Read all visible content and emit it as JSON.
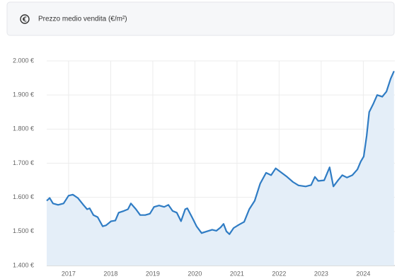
{
  "chart_data": {
    "type": "area",
    "title": "Prezzo medio vendita (€/m²)",
    "x": [
      2016.48,
      2016.55,
      2016.63,
      2016.75,
      2016.88,
      2017.0,
      2017.1,
      2017.22,
      2017.35,
      2017.44,
      2017.5,
      2017.59,
      2017.69,
      2017.81,
      2017.89,
      2018.01,
      2018.11,
      2018.19,
      2018.31,
      2018.41,
      2018.48,
      2018.6,
      2018.7,
      2018.82,
      2018.93,
      2019.03,
      2019.15,
      2019.27,
      2019.37,
      2019.47,
      2019.57,
      2019.67,
      2019.77,
      2019.82,
      2019.94,
      2020.04,
      2020.16,
      2020.28,
      2020.41,
      2020.51,
      2020.61,
      2020.68,
      2020.75,
      2020.82,
      2020.92,
      2021.05,
      2021.17,
      2021.29,
      2021.42,
      2021.55,
      2021.69,
      2021.81,
      2021.92,
      2022.06,
      2022.19,
      2022.33,
      2022.46,
      2022.63,
      2022.76,
      2022.85,
      2022.93,
      2023.07,
      2023.2,
      2023.29,
      2023.4,
      2023.5,
      2023.61,
      2023.74,
      2023.86,
      2023.94,
      2024.01,
      2024.08,
      2024.14,
      2024.24,
      2024.33,
      2024.45,
      2024.55,
      2024.65,
      2024.73
    ],
    "values": [
      1590,
      1598,
      1582,
      1578,
      1582,
      1605,
      1608,
      1598,
      1578,
      1565,
      1568,
      1548,
      1542,
      1515,
      1518,
      1530,
      1532,
      1555,
      1560,
      1565,
      1582,
      1565,
      1548,
      1548,
      1552,
      1572,
      1576,
      1572,
      1578,
      1560,
      1555,
      1530,
      1565,
      1568,
      1540,
      1515,
      1495,
      1500,
      1505,
      1502,
      1512,
      1522,
      1500,
      1492,
      1510,
      1520,
      1528,
      1565,
      1590,
      1640,
      1672,
      1665,
      1685,
      1672,
      1660,
      1645,
      1635,
      1632,
      1636,
      1660,
      1648,
      1650,
      1688,
      1632,
      1650,
      1665,
      1658,
      1665,
      1682,
      1705,
      1720,
      1780,
      1850,
      1875,
      1900,
      1895,
      1910,
      1948,
      1970
    ],
    "color": "#2f7cc4",
    "fill": "#e4eef8",
    "xlim": [
      2016.48,
      2024.75
    ],
    "xticks": [
      2017,
      2018,
      2019,
      2020,
      2021,
      2022,
      2023,
      2024
    ],
    "ylim": [
      1400,
      2000
    ],
    "yticks": [
      {
        "value": 1400,
        "label": "1.400 €"
      },
      {
        "value": 1500,
        "label": "1.500 €"
      },
      {
        "value": 1600,
        "label": "1.600 €"
      },
      {
        "value": 1700,
        "label": "1.700 €"
      },
      {
        "value": 1800,
        "label": "1.800 €"
      },
      {
        "value": 1900,
        "label": "1.900 €"
      },
      {
        "value": 2000,
        "label": "2.000 €"
      }
    ],
    "grid": true
  }
}
